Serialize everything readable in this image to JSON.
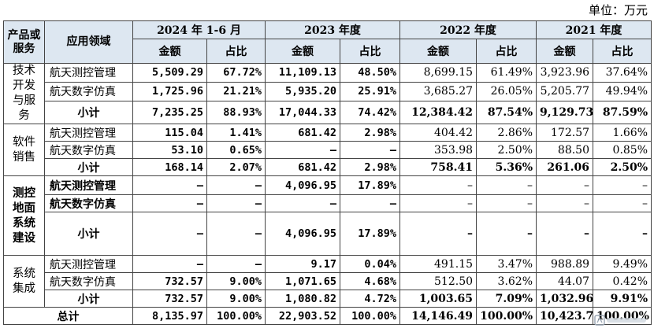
{
  "unit_label": "单位：万元",
  "headers": {
    "category": "产品或服务",
    "application": "应用领域",
    "periods": [
      "2024 年 1-6 月",
      "2023 年度",
      "2022 年度",
      "2021 年度"
    ],
    "amount": "金额",
    "ratio": "占比"
  },
  "groups": [
    {
      "name": "技术开发与服务",
      "rows": [
        {
          "app": "航天测控管理",
          "v": [
            "5,509.29",
            "67.72%",
            "11,109.13",
            "48.50%",
            "8,699.15",
            "61.49%",
            "3,923.96",
            "37.64%"
          ]
        },
        {
          "app": "航天数字仿真",
          "v": [
            "1,725.96",
            "21.21%",
            "5,935.20",
            "25.91%",
            "3,685.27",
            "26.05%",
            "5,205.77",
            "49.94%"
          ]
        },
        {
          "app": "小计",
          "v": [
            "7,235.25",
            "88.93%",
            "17,044.33",
            "74.42%",
            "12,384.42",
            "87.54%",
            "9,129.73",
            "87.59%"
          ]
        }
      ]
    },
    {
      "name": "软件销售",
      "rows": [
        {
          "app": "航天测控管理",
          "v": [
            "115.04",
            "1.41%",
            "681.42",
            "2.98%",
            "404.42",
            "2.86%",
            "172.57",
            "1.66%"
          ]
        },
        {
          "app": "航天数字仿真",
          "v": [
            "53.10",
            "0.65%",
            "–",
            "–",
            "353.98",
            "2.50%",
            "88.50",
            "0.85%"
          ]
        },
        {
          "app": "小计",
          "v": [
            "168.14",
            "2.07%",
            "681.42",
            "2.98%",
            "758.41",
            "5.36%",
            "261.06",
            "2.50%"
          ]
        }
      ]
    },
    {
      "name": "测控地面系统建设",
      "rows": [
        {
          "app": "航天测控管理",
          "v": [
            "–",
            "–",
            "4,096.95",
            "17.89%",
            "–",
            "–",
            "–",
            "–"
          ]
        },
        {
          "app": "航天数字仿真",
          "v": [
            "–",
            "–",
            "–",
            "–",
            "–",
            "–",
            "–",
            "–"
          ]
        },
        {
          "app": "小计",
          "v": [
            "–",
            "–",
            "4,096.95",
            "17.89%",
            "–",
            "–",
            "–",
            "–"
          ]
        }
      ]
    },
    {
      "name": "系统集成",
      "rows": [
        {
          "app": "航天测控管理",
          "v": [
            "–",
            "–",
            "9.17",
            "0.04%",
            "491.15",
            "3.47%",
            "988.89",
            "9.49%"
          ]
        },
        {
          "app": "航天数字仿真",
          "v": [
            "732.57",
            "9.00%",
            "1,071.65",
            "4.68%",
            "512.50",
            "3.62%",
            "44.07",
            "0.42%"
          ]
        },
        {
          "app": "小计",
          "v": [
            "732.57",
            "9.00%",
            "1,080.82",
            "4.72%",
            "1,003.65",
            "7.09%",
            "1,032.96",
            "9.91%"
          ]
        }
      ]
    }
  ],
  "total": {
    "label": "总计",
    "v": [
      "8,135.97",
      "100.00%",
      "22,903.52",
      "100.00%",
      "14,146.49",
      "100.00%",
      "10,423.76",
      "100.00%"
    ]
  }
}
